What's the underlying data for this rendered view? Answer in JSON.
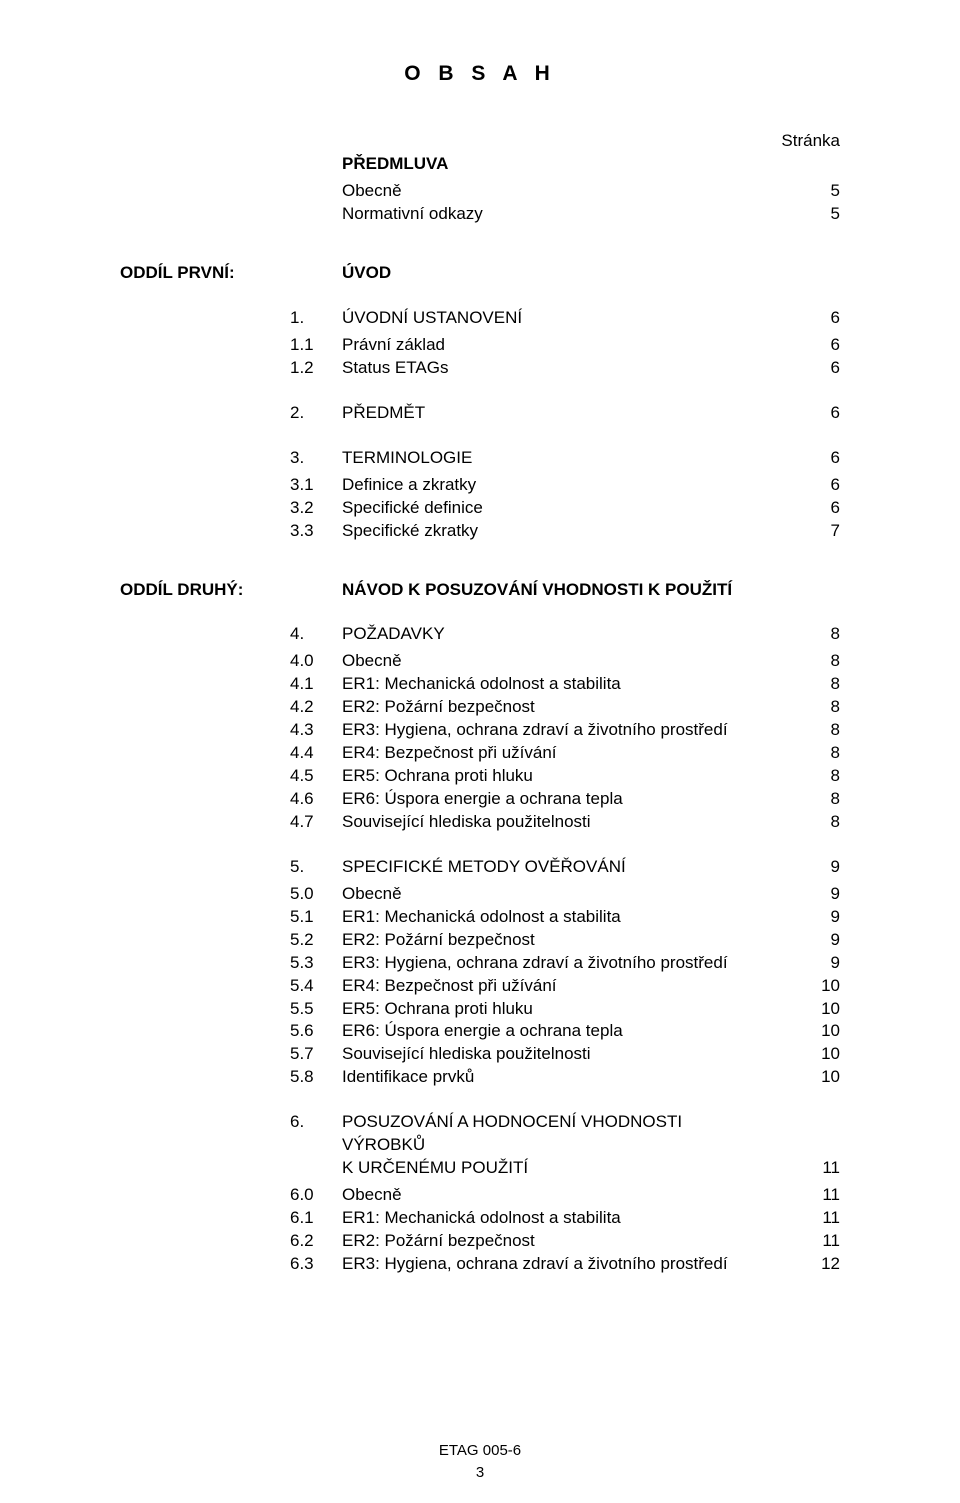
{
  "title": "O B S A H",
  "page_label_header": "Stránka",
  "preface": {
    "heading": "PŘEDMLUVA",
    "items": [
      {
        "text": "Obecně",
        "page": "5"
      },
      {
        "text": "Normativní odkazy",
        "page": "5"
      }
    ]
  },
  "section1": {
    "left_label": "ODDÍL PRVNÍ:",
    "heading": "ÚVOD",
    "chapters": [
      {
        "num": "1.",
        "title": "ÚVODNÍ USTANOVENÍ",
        "page": "6",
        "items": [
          {
            "num": "1.1",
            "text": "Právní základ",
            "page": "6"
          },
          {
            "num": "1.2",
            "text": "Status ETAGs",
            "page": "6"
          }
        ]
      },
      {
        "num": "2.",
        "title": "PŘEDMĚT",
        "page": "6",
        "items": []
      },
      {
        "num": "3.",
        "title": "TERMINOLOGIE",
        "page": "6",
        "items": [
          {
            "num": "3.1",
            "text": "Definice a zkratky",
            "page": "6"
          },
          {
            "num": "3.2",
            "text": "Specifické definice",
            "page": "6"
          },
          {
            "num": "3.3",
            "text": "Specifické zkratky",
            "page": "7"
          }
        ]
      }
    ]
  },
  "section2": {
    "left_label": "ODDÍL DRUHÝ:",
    "heading": "NÁVOD K POSUZOVÁNÍ VHODNOSTI K POUŽITÍ",
    "chapters": [
      {
        "num": "4.",
        "title": "POŽADAVKY",
        "page": "8",
        "items": [
          {
            "num": "4.0",
            "text": "Obecně",
            "page": "8"
          },
          {
            "num": "4.1",
            "text": "ER1: Mechanická odolnost a stabilita",
            "page": "8"
          },
          {
            "num": "4.2",
            "text": "ER2: Požární bezpečnost",
            "page": "8"
          },
          {
            "num": "4.3",
            "text": "ER3: Hygiena, ochrana zdraví a životního prostředí",
            "page": "8"
          },
          {
            "num": "4.4",
            "text": "ER4: Bezpečnost při užívání",
            "page": "8"
          },
          {
            "num": "4.5",
            "text": "ER5: Ochrana proti hluku",
            "page": "8"
          },
          {
            "num": "4.6",
            "text": "ER6: Úspora energie a ochrana tepla",
            "page": "8"
          },
          {
            "num": "4.7",
            "text": "Související hlediska použitelnosti",
            "page": "8"
          }
        ]
      },
      {
        "num": "5.",
        "title": "SPECIFICKÉ METODY OVĚŘOVÁNÍ",
        "page": "9",
        "items": [
          {
            "num": "5.0",
            "text": "Obecně",
            "page": "9"
          },
          {
            "num": "5.1",
            "text": "ER1: Mechanická odolnost a stabilita",
            "page": "9"
          },
          {
            "num": "5.2",
            "text": "ER2: Požární bezpečnost",
            "page": "9"
          },
          {
            "num": "5.3",
            "text": "ER3: Hygiena, ochrana zdraví a životního prostředí",
            "page": "9"
          },
          {
            "num": "5.4",
            "text": "ER4: Bezpečnost při užívání",
            "page": "10"
          },
          {
            "num": "5.5",
            "text": "ER5: Ochrana proti hluku",
            "page": "10"
          },
          {
            "num": "5.6",
            "text": "ER6: Úspora energie a ochrana tepla",
            "page": "10"
          },
          {
            "num": "5.7",
            "text": "Související hlediska použitelnosti",
            "page": "10"
          },
          {
            "num": "5.8",
            "text": "Identifikace prvků",
            "page": "10"
          }
        ]
      },
      {
        "num": "6.",
        "title": "POSUZOVÁNÍ A HODNOCENÍ VHODNOSTI VÝROBKŮ",
        "title_line2": "K URČENÉMU POUŽITÍ",
        "page": "11",
        "items": [
          {
            "num": "6.0",
            "text": "Obecně",
            "page": "11"
          },
          {
            "num": "6.1",
            "text": "ER1: Mechanická odolnost a stabilita",
            "page": "11"
          },
          {
            "num": "6.2",
            "text": "ER2: Požární bezpečnost",
            "page": "11"
          },
          {
            "num": "6.3",
            "text": "ER3: Hygiena, ochrana zdraví a životního prostředí",
            "page": "12"
          }
        ]
      }
    ]
  },
  "footer": {
    "doc_id": "ETAG 005-6",
    "page_number": "3"
  }
}
